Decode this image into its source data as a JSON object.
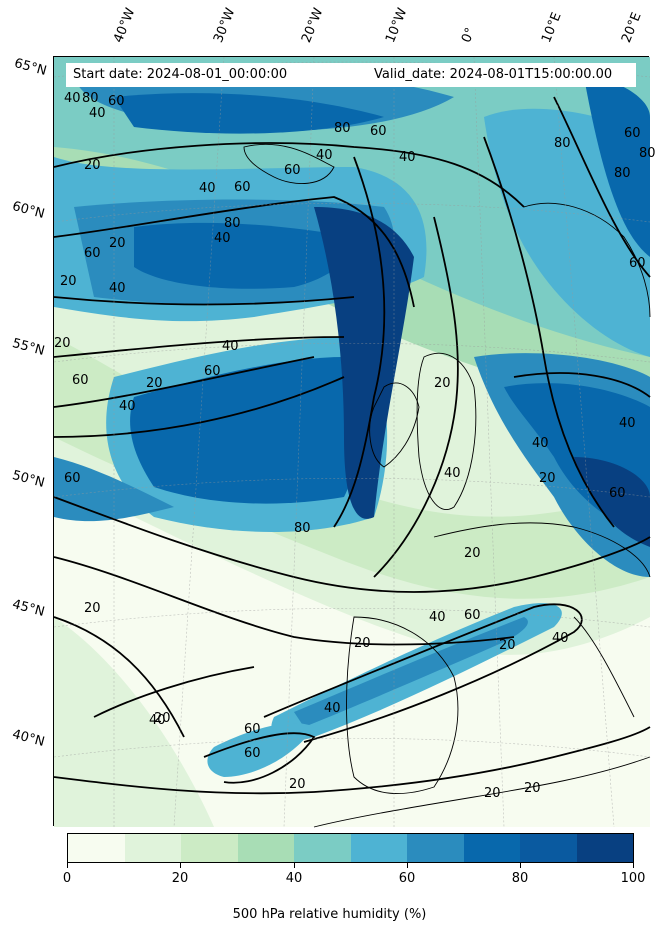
{
  "start_date": "Start date: 2024-08-01_00:00:00",
  "valid_date": "Valid_date: 2024-08-01T15:00:00.00",
  "longitude_labels": [
    "40°W",
    "30°W",
    "20°W",
    "10°W",
    "0°",
    "10°E",
    "20°E"
  ],
  "latitude_labels": [
    "65°N",
    "60°N",
    "55°N",
    "50°N",
    "45°N",
    "40°N"
  ],
  "contour_labels": [
    "80",
    "60",
    "40",
    "20",
    "60",
    "40",
    "80",
    "60",
    "40",
    "60",
    "40",
    "80",
    "40",
    "60",
    "20",
    "40",
    "20",
    "40",
    "20",
    "60",
    "40",
    "20",
    "40",
    "60",
    "60",
    "20",
    "40",
    "80",
    "60",
    "80",
    "60",
    "80",
    "80",
    "60",
    "40",
    "20",
    "40",
    "60",
    "40",
    "20",
    "20",
    "40",
    "60",
    "40",
    "20",
    "20",
    "40",
    "60",
    "20",
    "20",
    "20",
    "20"
  ],
  "colorbar": {
    "title": "500 hPa relative humidity (%)",
    "tick_labels": [
      "0",
      "20",
      "40",
      "60",
      "80",
      "100"
    ],
    "colors": [
      "#f7fcf0",
      "#e0f3db",
      "#ccebc5",
      "#a8ddb5",
      "#7bccc4",
      "#4eb3d3",
      "#2b8cbe",
      "#0868ac",
      "#0a5aa0",
      "#084081"
    ]
  }
}
